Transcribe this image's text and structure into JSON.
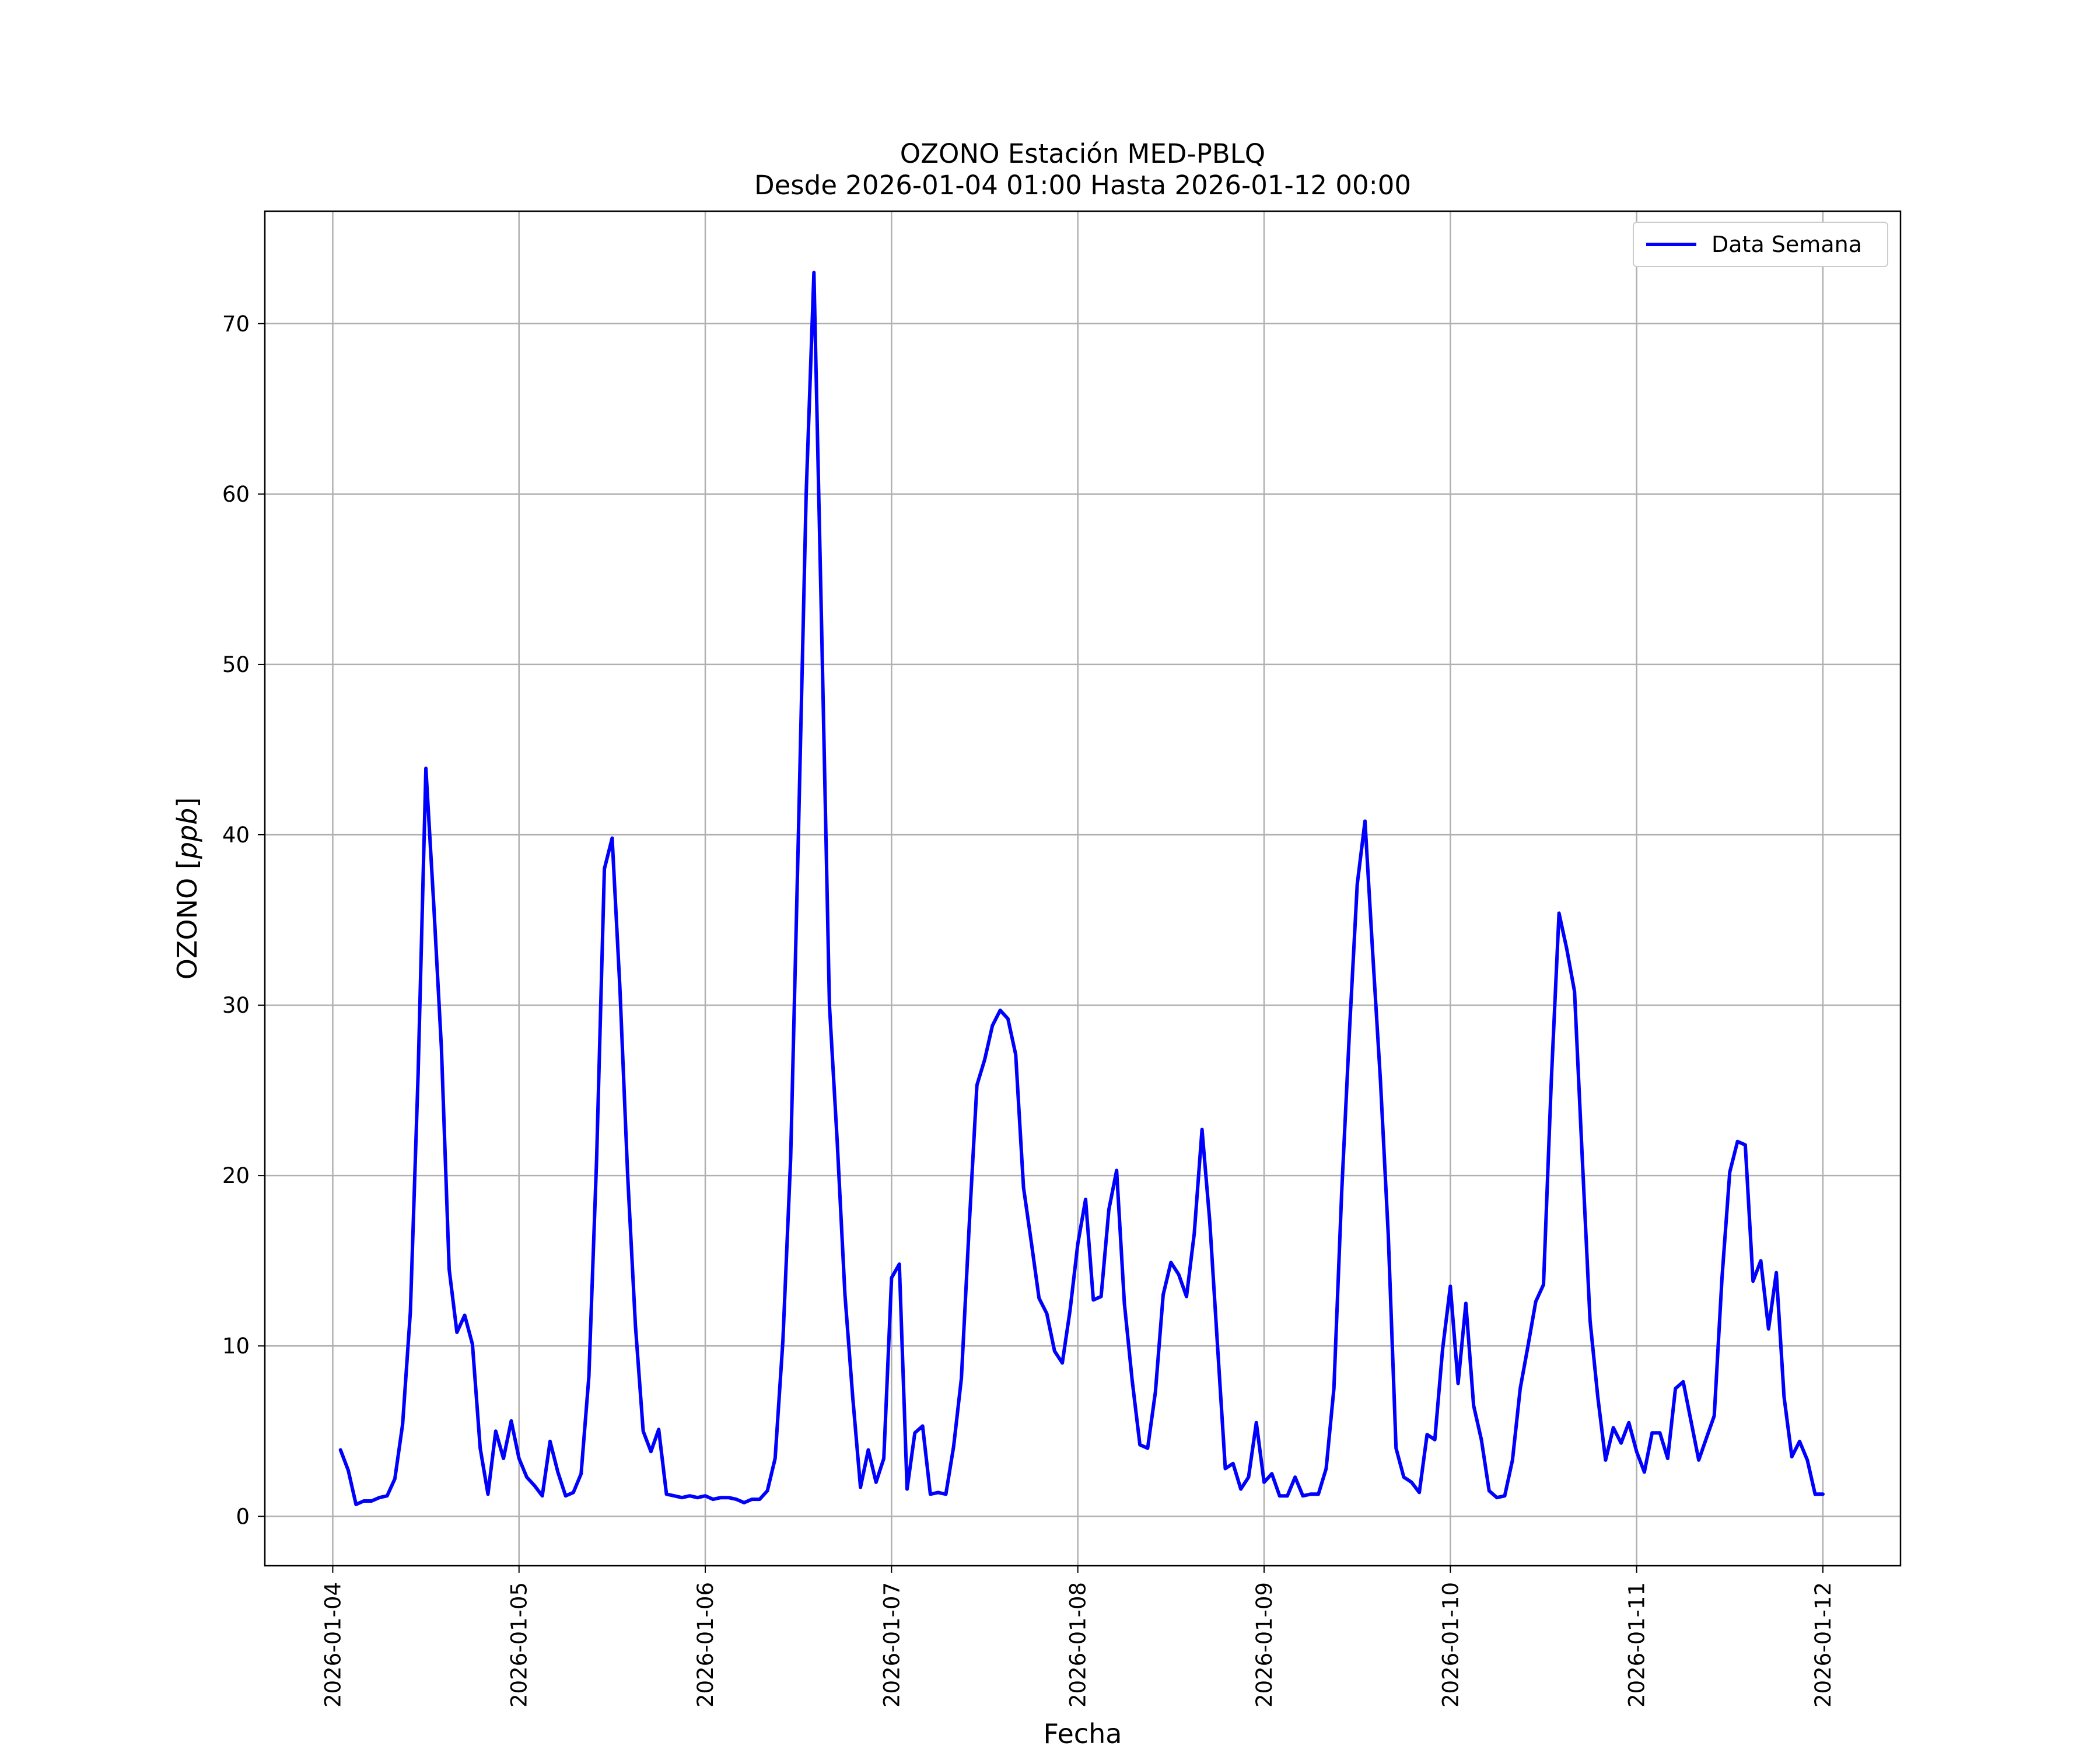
{
  "chart_data": {
    "type": "line",
    "title": "OZONO Estación MED-PBLQ",
    "subtitle": "Desde 2026-01-04 01:00 Hasta 2026-01-12 00:00",
    "xlabel": "Fecha",
    "ylabel": "OZONO [ppb]",
    "ylabel_text": "OZONO [",
    "ylabel_unit": "ppb",
    "ylabel_close": "]",
    "xlim": [
      "2026-01-03 15:15",
      "2026-01-12 10:00"
    ],
    "ylim": [
      -2.9,
      76.6
    ],
    "x_ticks": [
      "2026-01-04",
      "2026-01-05",
      "2026-01-06",
      "2026-01-07",
      "2026-01-08",
      "2026-01-09",
      "2026-01-10",
      "2026-01-11",
      "2026-01-12"
    ],
    "y_ticks": [
      0,
      10,
      20,
      30,
      40,
      50,
      60,
      70
    ],
    "grid": true,
    "legend_position": "top-right",
    "series": [
      {
        "name": "Data Semana",
        "color": "#0000ff",
        "start": "2026-01-04 01:00",
        "interval_hours": 1,
        "values": [
          3.9,
          2.7,
          0.7,
          0.9,
          0.9,
          1.1,
          1.2,
          2.2,
          5.4,
          12.0,
          26.0,
          43.9,
          36.0,
          27.5,
          14.5,
          10.8,
          11.8,
          10.1,
          4.0,
          1.3,
          5.0,
          3.4,
          5.6,
          3.4,
          2.3,
          1.8,
          1.2,
          4.4,
          2.6,
          1.2,
          1.4,
          2.5,
          8.2,
          21.0,
          38.0,
          39.8,
          31.0,
          20.0,
          11.2,
          5.0,
          3.8,
          5.1,
          1.3,
          1.2,
          1.1,
          1.2,
          1.1,
          1.2,
          1.0,
          1.1,
          1.1,
          1.0,
          0.8,
          1.0,
          1.0,
          1.5,
          3.4,
          10.3,
          21.0,
          40.0,
          60.0,
          73.0,
          52.0,
          30.0,
          22.0,
          13.0,
          7.0,
          1.7,
          3.9,
          2.0,
          3.4,
          14.0,
          14.8,
          1.6,
          4.9,
          5.3,
          1.3,
          1.4,
          1.3,
          4.1,
          8.1,
          17.0,
          25.3,
          26.8,
          28.8,
          29.7,
          29.2,
          27.1,
          19.3,
          16.1,
          12.8,
          11.9,
          9.7,
          9.0,
          12.1,
          16.0,
          18.6,
          12.7,
          12.9,
          18.0,
          20.3,
          12.5,
          8.0,
          4.2,
          4.0,
          7.3,
          13.0,
          14.9,
          14.2,
          12.9,
          16.6,
          22.7,
          17.3,
          10.0,
          2.8,
          3.1,
          1.6,
          2.3,
          5.5,
          2.0,
          2.5,
          1.2,
          1.2,
          2.3,
          1.2,
          1.3,
          1.3,
          2.8,
          7.5,
          19.0,
          28.5,
          37.1,
          40.8,
          33.0,
          25.5,
          16.5,
          4.0,
          2.3,
          2.0,
          1.4,
          4.8,
          4.5,
          9.8,
          13.5,
          7.8,
          12.5,
          6.5,
          4.5,
          1.5,
          1.1,
          1.2,
          3.3,
          7.5,
          10.0,
          12.6,
          13.6,
          25.5,
          35.4,
          33.3,
          30.8,
          21.0,
          11.5,
          7.0,
          3.3,
          5.2,
          4.3,
          5.5,
          3.8,
          2.6,
          4.9,
          4.9,
          3.4,
          7.5,
          7.9,
          5.6,
          3.3,
          4.6,
          5.9,
          14.0,
          20.2,
          22.0,
          21.8,
          13.8,
          15.0,
          11.0,
          14.3,
          7.0,
          3.5,
          4.4,
          3.3,
          1.3,
          1.3
        ]
      }
    ]
  }
}
